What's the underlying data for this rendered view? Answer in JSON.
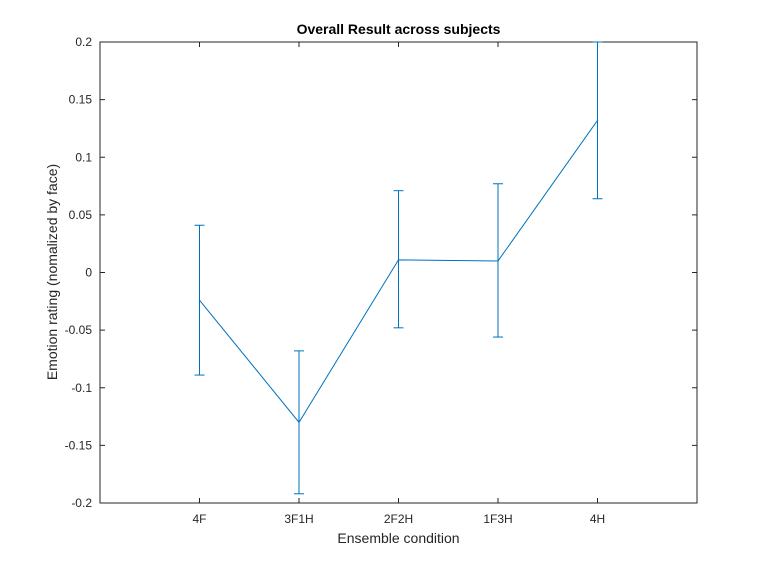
{
  "chart_data": {
    "type": "line",
    "title": "Overall Result across subjects",
    "xlabel": "Ensemble condition",
    "ylabel": "Emotion rating (nomalized by face)",
    "categories": [
      "4F",
      "3F1H",
      "2F2H",
      "1F3H",
      "4H"
    ],
    "series": [
      {
        "values": [
          -0.024,
          -0.13,
          0.011,
          0.01,
          0.132
        ],
        "error_lower": [
          -0.089,
          -0.192,
          -0.048,
          -0.056,
          0.064
        ],
        "error_upper": [
          0.041,
          -0.068,
          0.071,
          0.077,
          0.2
        ]
      }
    ],
    "ylim": [
      -0.2,
      0.2
    ],
    "yticks": [
      -0.2,
      -0.15,
      -0.1,
      -0.05,
      0,
      0.05,
      0.1,
      0.15,
      0.2
    ],
    "ytick_labels": [
      "-0.2",
      "-0.15",
      "-0.1",
      "-0.05",
      "0",
      "0.05",
      "0.1",
      "0.15",
      "0.2"
    ],
    "grid": false,
    "legend": "none",
    "line_color": "#0072BD"
  }
}
